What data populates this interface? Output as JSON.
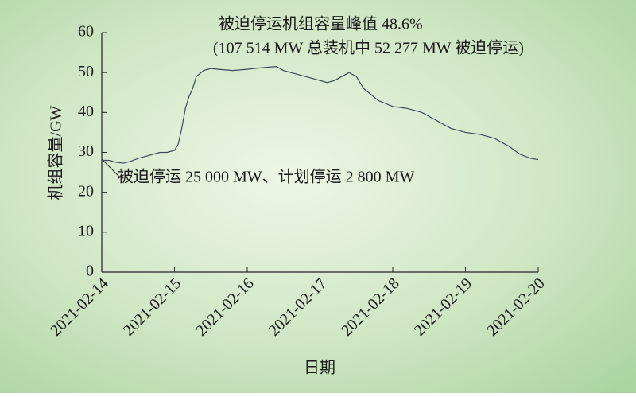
{
  "chart_data": {
    "type": "line",
    "annotations": [
      "被迫停运机组容量峰值 48.6%",
      "(107 514 MW 总装机中 52 277 MW 被迫停运)",
      "被迫停运 25 000 MW、计划停运 2 800 MW"
    ],
    "x_label": "日期",
    "y_label": "机组容量/GW",
    "x": [
      0,
      0.1,
      0.2,
      0.3,
      0.4,
      0.5,
      0.6,
      0.7,
      0.8,
      0.9,
      1.0,
      1.05,
      1.1,
      1.15,
      1.2,
      1.25,
      1.3,
      1.4,
      1.5,
      1.6,
      1.8,
      2.0,
      2.2,
      2.4,
      2.5,
      2.7,
      2.9,
      3.1,
      3.2,
      3.3,
      3.4,
      3.5,
      3.6,
      3.7,
      3.8,
      4.0,
      4.2,
      4.4,
      4.6,
      4.8,
      5.0,
      5.2,
      5.4,
      5.6,
      5.75,
      5.9,
      6.0
    ],
    "series": [
      {
        "color": "#3a4a5a",
        "values": [
          28,
          28,
          27.5,
          27.3,
          27.8,
          28.5,
          29,
          29.5,
          30,
          30,
          30.5,
          32,
          36,
          41,
          44,
          46,
          49,
          50.5,
          51,
          50.8,
          50.5,
          50.8,
          51.2,
          51.5,
          50.5,
          49.5,
          48.5,
          47.5,
          48,
          49,
          50,
          49,
          46,
          44.5,
          43,
          41.5,
          41,
          40,
          38,
          36,
          35,
          34.5,
          33.5,
          31.5,
          29.5,
          28.5,
          28.2
        ]
      }
    ],
    "xlim": [
      0,
      6
    ],
    "xticks": [
      {
        "value": 0,
        "label": "2021-02-14"
      },
      {
        "value": 1,
        "label": "2021-02-15"
      },
      {
        "value": 2,
        "label": "2021-02-16"
      },
      {
        "value": 3,
        "label": "2021-02-17"
      },
      {
        "value": 4,
        "label": "2021-02-18"
      },
      {
        "value": 5,
        "label": "2021-02-19"
      },
      {
        "value": 6,
        "label": "2021-02-20"
      }
    ],
    "ylim": [
      0,
      60
    ],
    "yticks": [
      0,
      10,
      20,
      30,
      40,
      50,
      60
    ]
  }
}
